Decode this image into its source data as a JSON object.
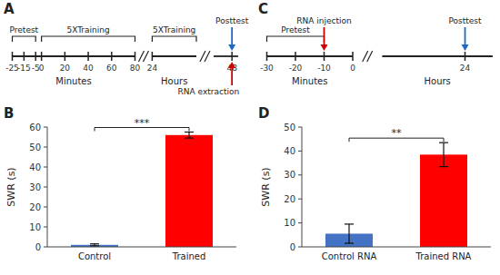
{
  "chart_data": [
    {
      "type": "timeline",
      "title": "A",
      "segments": [
        {
          "label": "Minutes",
          "xlim": [
            -25,
            80
          ],
          "xticks": [
            -25,
            -15,
            -5,
            0,
            20,
            40,
            60,
            80
          ]
        },
        {
          "label": "Hours",
          "xticks": [
            24
          ]
        },
        {
          "xticks": [
            48
          ]
        }
      ],
      "annotations": [
        {
          "text": "Pretest",
          "kind": "bracket",
          "segment": 0,
          "from": -25,
          "to": -5
        },
        {
          "text": "5XTraining",
          "kind": "bracket",
          "segment": 0,
          "from": 0,
          "to": 80
        },
        {
          "text": "5XTraining",
          "kind": "bracket",
          "segment": 1,
          "from": 24
        },
        {
          "text": "Posttest",
          "kind": "arrow_down",
          "segment": 2,
          "at": 48,
          "color": "#1B6AC9"
        },
        {
          "text": "RNA extraction",
          "kind": "arrow_up",
          "segment": 2,
          "at": 48,
          "color": "#CC0000"
        }
      ]
    },
    {
      "type": "bar",
      "title": "B",
      "categories": [
        "Control",
        "Trained"
      ],
      "values": [
        1.0,
        56.0
      ],
      "errors": [
        0.5,
        1.5
      ],
      "colors": [
        "#4472C4",
        "#FF0000"
      ],
      "ylabel": "SWR (s)",
      "ylim": [
        0,
        60
      ],
      "yticks": [
        0,
        10,
        20,
        30,
        40,
        50,
        60
      ],
      "significance": "***"
    },
    {
      "type": "timeline",
      "title": "C",
      "segments": [
        {
          "label": "Minutes",
          "xlim": [
            -30,
            0
          ],
          "xticks": [
            -30,
            -20,
            -10,
            0
          ]
        },
        {
          "label": "Hours",
          "xticks": [
            24
          ]
        }
      ],
      "annotations": [
        {
          "text": "Pretest",
          "kind": "bracket",
          "segment": 0,
          "from": -30,
          "to": -10
        },
        {
          "text": "RNA injection",
          "kind": "arrow_down",
          "segment": 0,
          "at": -10,
          "color": "#CC0000"
        },
        {
          "text": "Posttest",
          "kind": "arrow_down",
          "segment": 1,
          "at": 24,
          "color": "#1B6AC9"
        }
      ]
    },
    {
      "type": "bar",
      "title": "D",
      "categories": [
        "Control RNA",
        "Trained RNA"
      ],
      "values": [
        5.5,
        38.5
      ],
      "errors": [
        4.0,
        5.0
      ],
      "colors": [
        "#4472C4",
        "#FF0000"
      ],
      "ylabel": "SWR (s)",
      "ylim": [
        0,
        50
      ],
      "yticks": [
        0,
        10,
        20,
        30,
        40,
        50
      ],
      "significance": "**"
    }
  ]
}
